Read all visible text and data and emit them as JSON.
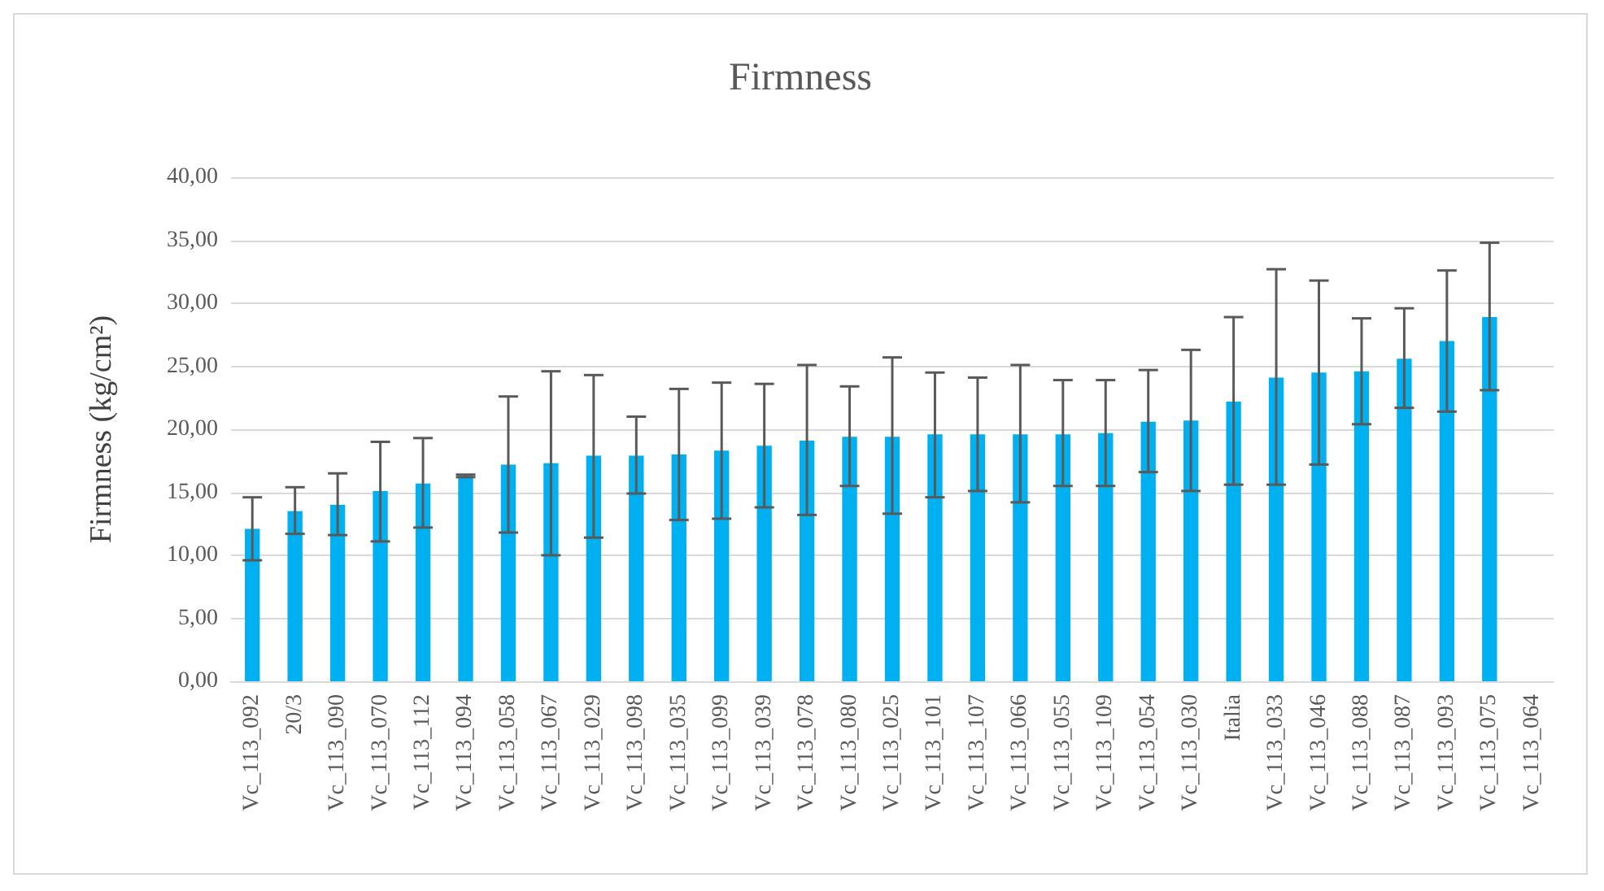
{
  "chart_data": {
    "type": "bar",
    "title": "Firmness",
    "ylabel": "Firmness (kg/cm²)",
    "categories": [
      "Vc_113_092",
      "20/3",
      "Vc_113_090",
      "Vc_113_070",
      "Vc_113_112",
      "Vc_113_094",
      "Vc_113_058",
      "Vc_113_067",
      "Vc_113_029",
      "Vc_113_098",
      "Vc_113_035",
      "Vc_113_099",
      "Vc_113_039",
      "Vc_113_078",
      "Vc_113_080",
      "Vc_113_025",
      "Vc_113_101",
      "Vc_113_107",
      "Vc_113_066",
      "Vc_113_055",
      "Vc_113_109",
      "Vc_113_054",
      "Vc_113_030",
      "Italia",
      "Vc_113_033",
      "Vc_113_046",
      "Vc_113_088",
      "Vc_113_087",
      "Vc_113_093",
      "Vc_113_075",
      "Vc_113_064"
    ],
    "values": [
      12.1,
      13.5,
      14.0,
      15.1,
      15.7,
      16.3,
      17.2,
      17.3,
      17.9,
      17.9,
      18.0,
      18.3,
      18.7,
      19.1,
      19.4,
      19.4,
      19.6,
      19.6,
      19.6,
      19.6,
      19.7,
      20.6,
      20.7,
      22.2,
      24.1,
      24.5,
      24.6,
      25.6,
      27.0,
      28.9,
      null
    ],
    "errors": [
      [
        9.6,
        14.6
      ],
      [
        11.7,
        15.4
      ],
      [
        11.6,
        16.5
      ],
      [
        11.1,
        19.0
      ],
      [
        12.2,
        19.3
      ],
      [
        16.2,
        16.4
      ],
      [
        11.8,
        22.6
      ],
      [
        10.0,
        24.6
      ],
      [
        11.4,
        24.3
      ],
      [
        14.9,
        21.0
      ],
      [
        12.8,
        23.2
      ],
      [
        12.9,
        23.7
      ],
      [
        13.8,
        23.6
      ],
      [
        13.2,
        25.1
      ],
      [
        15.5,
        23.4
      ],
      [
        13.3,
        25.7
      ],
      [
        14.6,
        24.5
      ],
      [
        15.1,
        24.1
      ],
      [
        14.2,
        25.1
      ],
      [
        15.5,
        23.9
      ],
      [
        15.5,
        23.9
      ],
      [
        16.6,
        24.7
      ],
      [
        15.1,
        26.3
      ],
      [
        15.6,
        28.9
      ],
      [
        15.6,
        32.7
      ],
      [
        17.2,
        31.8
      ],
      [
        20.4,
        28.8
      ],
      [
        21.7,
        29.6
      ],
      [
        21.4,
        32.6
      ],
      [
        23.1,
        34.8
      ],
      null
    ],
    "color": "#00b0f0",
    "ylim": [
      0,
      40
    ],
    "yticks": [
      {
        "value": 0,
        "label": "0,00"
      },
      {
        "value": 5,
        "label": "5,00"
      },
      {
        "value": 10,
        "label": "10,00"
      },
      {
        "value": 15,
        "label": "15,00"
      },
      {
        "value": 20,
        "label": "20,00"
      },
      {
        "value": 25,
        "label": "25,00"
      },
      {
        "value": 30,
        "label": "30,00"
      },
      {
        "value": 35,
        "label": "35,00"
      },
      {
        "value": 40,
        "label": "40,00"
      }
    ],
    "grid": "y"
  }
}
